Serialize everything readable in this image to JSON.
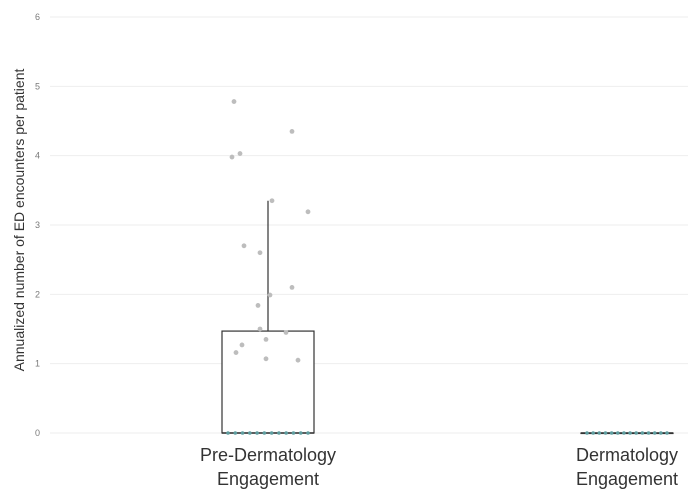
{
  "chart_data": {
    "type": "box",
    "title": "",
    "xlabel": "",
    "ylabel": "Annualized number of ED encounters per patient",
    "ylim": [
      0,
      6
    ],
    "yticks": [
      0,
      1,
      2,
      3,
      4,
      5,
      6
    ],
    "ytick_labels": [
      "0",
      "1",
      "2",
      "3",
      "4",
      "5",
      "6"
    ],
    "grid": true,
    "categories": [
      "Pre-Dermatology\nEngagement",
      "Dermatology\nEngagement"
    ],
    "boxes": [
      {
        "category": "Pre-Dermatology\nEngagement",
        "min": 0,
        "q1": 0,
        "median": 0,
        "q3": 1.47,
        "max": 3.35
      },
      {
        "category": "Dermatology\nEngagement",
        "min": 0,
        "q1": 0,
        "median": 0,
        "q3": 0,
        "max": 0
      }
    ],
    "points": [
      {
        "category": 0,
        "values": [
          4.78,
          4.35,
          4.03,
          3.98,
          3.35,
          3.19,
          2.7,
          2.6,
          2.1,
          1.99,
          1.84,
          1.5,
          1.45,
          1.35,
          1.27,
          1.16,
          1.07,
          1.05
        ]
      },
      {
        "category": 0,
        "zero_count": 12
      },
      {
        "category": 1,
        "zero_count": 14
      }
    ],
    "colors": {
      "points": "#bdbdbd",
      "zero_points": "#5f9ea0",
      "box": "#333333",
      "grid": "#eeeeee"
    }
  }
}
